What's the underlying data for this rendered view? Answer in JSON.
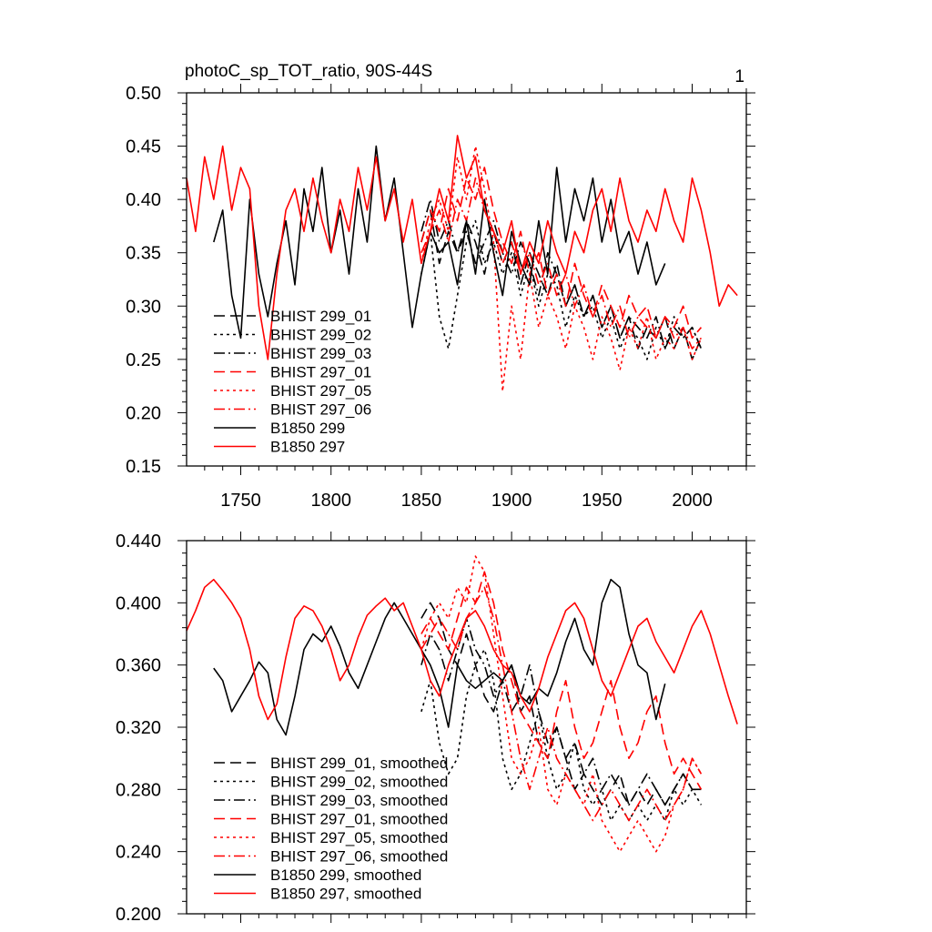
{
  "figure": {
    "title": "photoC_sp_TOT_ratio, 90S-44S",
    "panel_number": "1"
  },
  "chart_data": [
    {
      "type": "line",
      "panel": "top",
      "x_range": [
        1720,
        2030
      ],
      "ylim": [
        0.15,
        0.5
      ],
      "x_ticks": [
        1750,
        1800,
        1850,
        1900,
        1950,
        2000
      ],
      "x_tick_labels": [
        "1750",
        "1800",
        "1850",
        "1900",
        "1950",
        "2000"
      ],
      "y_ticks": [
        0.15,
        0.2,
        0.25,
        0.3,
        0.35,
        0.4,
        0.45,
        0.5
      ],
      "y_tick_labels": [
        "0.15",
        "0.20",
        "0.25",
        "0.30",
        "0.35",
        "0.40",
        "0.45",
        "0.50"
      ],
      "legend_position": "bottom-left",
      "series": [
        {
          "name": "BHIST 299_01",
          "color": "#000000",
          "dash": "dashed",
          "x_start": 1850,
          "x_end": 2005,
          "step": 5,
          "values": [
            0.36,
            0.39,
            0.34,
            0.37,
            0.35,
            0.38,
            0.36,
            0.33,
            0.37,
            0.34,
            0.36,
            0.32,
            0.35,
            0.33,
            0.31,
            0.34,
            0.3,
            0.32,
            0.29,
            0.31,
            0.28,
            0.3,
            0.27,
            0.29,
            0.26,
            0.28,
            0.27,
            0.29,
            0.26,
            0.28,
            0.25,
            0.27
          ]
        },
        {
          "name": "BHIST 299_02",
          "color": "#000000",
          "dash": "dotted",
          "x_start": 1850,
          "x_end": 2005,
          "step": 5,
          "values": [
            0.33,
            0.37,
            0.29,
            0.26,
            0.31,
            0.36,
            0.38,
            0.34,
            0.36,
            0.33,
            0.35,
            0.31,
            0.34,
            0.3,
            0.33,
            0.32,
            0.28,
            0.31,
            0.29,
            0.3,
            0.27,
            0.29,
            0.26,
            0.28,
            0.27,
            0.25,
            0.28,
            0.26,
            0.29,
            0.27,
            0.28,
            0.26
          ]
        },
        {
          "name": "BHIST 299_03",
          "color": "#000000",
          "dash": "dashdot",
          "x_start": 1850,
          "x_end": 2005,
          "step": 5,
          "values": [
            0.37,
            0.4,
            0.36,
            0.38,
            0.35,
            0.37,
            0.34,
            0.36,
            0.38,
            0.35,
            0.33,
            0.36,
            0.34,
            0.31,
            0.35,
            0.33,
            0.3,
            0.32,
            0.29,
            0.31,
            0.28,
            0.3,
            0.27,
            0.29,
            0.28,
            0.27,
            0.29,
            0.26,
            0.28,
            0.27,
            0.28,
            0.26
          ]
        },
        {
          "name": "BHIST 297_01",
          "color": "#ff0000",
          "dash": "dashed",
          "x_start": 1850,
          "x_end": 2005,
          "step": 5,
          "values": [
            0.36,
            0.39,
            0.37,
            0.41,
            0.38,
            0.42,
            0.4,
            0.43,
            0.39,
            0.36,
            0.34,
            0.37,
            0.33,
            0.35,
            0.31,
            0.33,
            0.3,
            0.34,
            0.31,
            0.29,
            0.32,
            0.3,
            0.28,
            0.31,
            0.29,
            0.3,
            0.27,
            0.29,
            0.28,
            0.3,
            0.27,
            0.28
          ]
        },
        {
          "name": "BHIST 297_05",
          "color": "#ff0000",
          "dash": "dotted",
          "x_start": 1850,
          "x_end": 2005,
          "step": 5,
          "values": [
            0.34,
            0.38,
            0.4,
            0.37,
            0.44,
            0.4,
            0.45,
            0.41,
            0.36,
            0.22,
            0.3,
            0.25,
            0.33,
            0.28,
            0.31,
            0.29,
            0.26,
            0.3,
            0.28,
            0.25,
            0.29,
            0.27,
            0.24,
            0.28,
            0.26,
            0.29,
            0.25,
            0.27,
            0.26,
            0.28,
            0.25,
            0.27
          ]
        },
        {
          "name": "BHIST 297_06",
          "color": "#ff0000",
          "dash": "dashdot",
          "x_start": 1850,
          "x_end": 2005,
          "step": 5,
          "values": [
            0.35,
            0.37,
            0.39,
            0.36,
            0.4,
            0.38,
            0.42,
            0.39,
            0.37,
            0.34,
            0.36,
            0.33,
            0.35,
            0.32,
            0.34,
            0.31,
            0.33,
            0.3,
            0.32,
            0.29,
            0.31,
            0.28,
            0.3,
            0.27,
            0.29,
            0.28,
            0.27,
            0.29,
            0.27,
            0.28,
            0.26,
            0.27
          ]
        },
        {
          "name": "B1850 299",
          "color": "#000000",
          "dash": "solid",
          "x_start": 1735,
          "x_end": 1985,
          "step": 5,
          "values": [
            0.36,
            0.39,
            0.31,
            0.27,
            0.4,
            0.33,
            0.29,
            0.34,
            0.38,
            0.32,
            0.41,
            0.37,
            0.43,
            0.35,
            0.39,
            0.33,
            0.41,
            0.36,
            0.45,
            0.38,
            0.42,
            0.35,
            0.28,
            0.33,
            0.37,
            0.35,
            0.36,
            0.32,
            0.38,
            0.33,
            0.4,
            0.35,
            0.31,
            0.37,
            0.34,
            0.32,
            0.38,
            0.33,
            0.43,
            0.36,
            0.41,
            0.38,
            0.42,
            0.36,
            0.4,
            0.35,
            0.37,
            0.33,
            0.36,
            0.32,
            0.34
          ]
        },
        {
          "name": "B1850 297",
          "color": "#ff0000",
          "dash": "solid",
          "x_start": 1720,
          "x_end": 2025,
          "step": 5,
          "values": [
            0.42,
            0.37,
            0.44,
            0.4,
            0.45,
            0.39,
            0.43,
            0.41,
            0.3,
            0.25,
            0.33,
            0.39,
            0.41,
            0.37,
            0.42,
            0.38,
            0.35,
            0.4,
            0.37,
            0.43,
            0.39,
            0.44,
            0.38,
            0.41,
            0.36,
            0.4,
            0.34,
            0.37,
            0.41,
            0.38,
            0.46,
            0.42,
            0.44,
            0.39,
            0.37,
            0.35,
            0.38,
            0.33,
            0.36,
            0.34,
            0.38,
            0.35,
            0.33,
            0.37,
            0.35,
            0.39,
            0.41,
            0.37,
            0.42,
            0.38,
            0.36,
            0.39,
            0.37,
            0.41,
            0.38,
            0.36,
            0.42,
            0.39,
            0.35,
            0.3,
            0.32,
            0.31
          ]
        }
      ]
    },
    {
      "type": "line",
      "panel": "bottom",
      "x_range": [
        1720,
        2030
      ],
      "ylim": [
        0.2,
        0.44
      ],
      "x_ticks": [
        1750,
        1800,
        1850,
        1900,
        1950,
        2000
      ],
      "y_ticks": [
        0.2,
        0.24,
        0.28,
        0.32,
        0.36,
        0.4,
        0.44
      ],
      "y_tick_labels": [
        "0.200",
        "0.240",
        "0.280",
        "0.320",
        "0.360",
        "0.400",
        "0.440"
      ],
      "legend_position": "bottom-left",
      "series": [
        {
          "name": "BHIST 299_01, smoothed",
          "color": "#000000",
          "dash": "dashed",
          "x_start": 1850,
          "x_end": 2005,
          "step": 5,
          "values": [
            0.39,
            0.4,
            0.39,
            0.37,
            0.36,
            0.38,
            0.36,
            0.34,
            0.33,
            0.35,
            0.36,
            0.33,
            0.34,
            0.31,
            0.3,
            0.32,
            0.3,
            0.28,
            0.29,
            0.28,
            0.27,
            0.28,
            0.29,
            0.27,
            0.28,
            0.27,
            0.28,
            0.27,
            0.28,
            0.29,
            0.28,
            0.28
          ]
        },
        {
          "name": "BHIST 299_02, smoothed",
          "color": "#000000",
          "dash": "dotted",
          "x_start": 1850,
          "x_end": 2005,
          "step": 5,
          "values": [
            0.33,
            0.35,
            0.31,
            0.29,
            0.3,
            0.34,
            0.36,
            0.37,
            0.35,
            0.3,
            0.28,
            0.29,
            0.31,
            0.33,
            0.3,
            0.28,
            0.29,
            0.31,
            0.28,
            0.27,
            0.28,
            0.26,
            0.27,
            0.26,
            0.27,
            0.26,
            0.27,
            0.26,
            0.28,
            0.27,
            0.28,
            0.27
          ]
        },
        {
          "name": "BHIST 299_03, smoothed",
          "color": "#000000",
          "dash": "dashdot",
          "x_start": 1850,
          "x_end": 2005,
          "step": 5,
          "values": [
            0.36,
            0.38,
            0.37,
            0.35,
            0.37,
            0.39,
            0.37,
            0.36,
            0.34,
            0.35,
            0.33,
            0.34,
            0.36,
            0.33,
            0.31,
            0.32,
            0.3,
            0.31,
            0.29,
            0.3,
            0.28,
            0.29,
            0.28,
            0.27,
            0.28,
            0.29,
            0.28,
            0.27,
            0.28,
            0.29,
            0.28,
            0.28
          ]
        },
        {
          "name": "BHIST 297_01, smoothed",
          "color": "#ff0000",
          "dash": "dashed",
          "x_start": 1850,
          "x_end": 2005,
          "step": 5,
          "values": [
            0.38,
            0.39,
            0.38,
            0.37,
            0.39,
            0.41,
            0.4,
            0.42,
            0.4,
            0.37,
            0.35,
            0.33,
            0.32,
            0.31,
            0.3,
            0.33,
            0.35,
            0.32,
            0.3,
            0.31,
            0.33,
            0.35,
            0.32,
            0.3,
            0.31,
            0.33,
            0.34,
            0.31,
            0.29,
            0.3,
            0.29,
            0.28
          ]
        },
        {
          "name": "BHIST 297_05, smoothed",
          "color": "#ff0000",
          "dash": "dotted",
          "x_start": 1850,
          "x_end": 2005,
          "step": 5,
          "values": [
            0.37,
            0.39,
            0.4,
            0.39,
            0.41,
            0.4,
            0.43,
            0.42,
            0.38,
            0.34,
            0.3,
            0.29,
            0.3,
            0.32,
            0.28,
            0.27,
            0.29,
            0.28,
            0.27,
            0.29,
            0.26,
            0.25,
            0.24,
            0.25,
            0.26,
            0.25,
            0.24,
            0.25,
            0.27,
            0.28,
            0.3,
            0.29
          ]
        },
        {
          "name": "BHIST 297_06, smoothed",
          "color": "#ff0000",
          "dash": "dashdot",
          "x_start": 1850,
          "x_end": 2005,
          "step": 5,
          "values": [
            0.37,
            0.38,
            0.39,
            0.38,
            0.37,
            0.39,
            0.4,
            0.41,
            0.39,
            0.36,
            0.33,
            0.3,
            0.28,
            0.3,
            0.32,
            0.3,
            0.29,
            0.28,
            0.27,
            0.26,
            0.27,
            0.28,
            0.27,
            0.26,
            0.27,
            0.28,
            0.27,
            0.26,
            0.27,
            0.28,
            0.3,
            0.29
          ]
        },
        {
          "name": "B1850 299, smoothed",
          "color": "#000000",
          "dash": "solid",
          "x_start": 1735,
          "x_end": 1985,
          "step": 5,
          "values": [
            0.358,
            0.35,
            0.33,
            0.34,
            0.35,
            0.362,
            0.355,
            0.325,
            0.315,
            0.34,
            0.37,
            0.38,
            0.375,
            0.385,
            0.372,
            0.355,
            0.345,
            0.36,
            0.375,
            0.39,
            0.4,
            0.39,
            0.38,
            0.37,
            0.36,
            0.345,
            0.32,
            0.36,
            0.35,
            0.345,
            0.35,
            0.355,
            0.35,
            0.36,
            0.34,
            0.335,
            0.345,
            0.34,
            0.355,
            0.375,
            0.39,
            0.37,
            0.36,
            0.4,
            0.415,
            0.41,
            0.38,
            0.36,
            0.355,
            0.325,
            0.348
          ]
        },
        {
          "name": "B1850 297, smoothed",
          "color": "#ff0000",
          "dash": "solid",
          "x_start": 1720,
          "x_end": 2025,
          "step": 5,
          "values": [
            0.382,
            0.395,
            0.41,
            0.415,
            0.408,
            0.4,
            0.39,
            0.37,
            0.34,
            0.325,
            0.335,
            0.365,
            0.39,
            0.398,
            0.395,
            0.385,
            0.37,
            0.35,
            0.36,
            0.378,
            0.392,
            0.398,
            0.403,
            0.395,
            0.4,
            0.385,
            0.37,
            0.35,
            0.34,
            0.36,
            0.375,
            0.39,
            0.395,
            0.385,
            0.37,
            0.36,
            0.355,
            0.34,
            0.33,
            0.345,
            0.365,
            0.38,
            0.395,
            0.4,
            0.39,
            0.37,
            0.35,
            0.34,
            0.355,
            0.37,
            0.385,
            0.39,
            0.375,
            0.365,
            0.355,
            0.37,
            0.385,
            0.395,
            0.38,
            0.36,
            0.34,
            0.322
          ]
        }
      ]
    }
  ]
}
